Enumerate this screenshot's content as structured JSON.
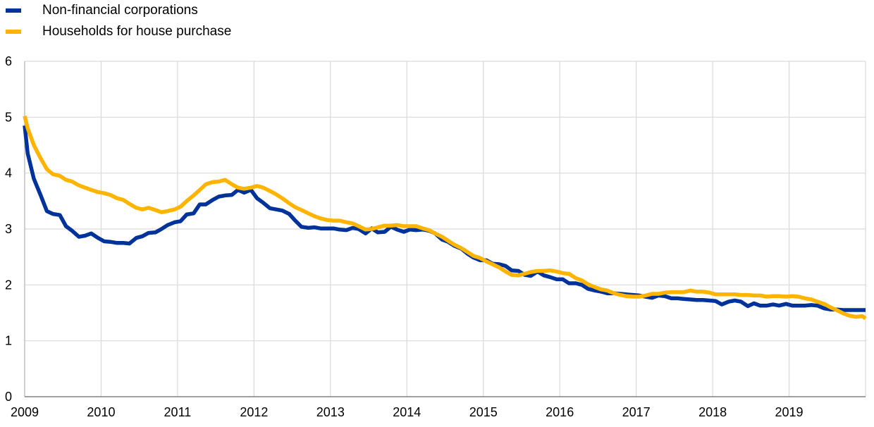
{
  "chart_data": {
    "type": "line",
    "title": "",
    "xlabel": "",
    "ylabel": "",
    "ylim": [
      0,
      6
    ],
    "xlim": [
      2009.0,
      2020.0
    ],
    "grid": true,
    "legend_position": "top-left",
    "y_ticks": [
      "0",
      "1",
      "2",
      "3",
      "4",
      "5",
      "6"
    ],
    "x_ticks": [
      "2009",
      "2010",
      "2011",
      "2012",
      "2013",
      "2014",
      "2015",
      "2016",
      "2017",
      "2018",
      "2019"
    ],
    "series": [
      {
        "name": "Non-financial corporations",
        "color": "#003399",
        "points": [
          [
            2009.0,
            4.85
          ],
          [
            2009.04,
            4.35
          ],
          [
            2009.12,
            3.9
          ],
          [
            2009.21,
            3.6
          ],
          [
            2009.29,
            3.32
          ],
          [
            2009.37,
            3.27
          ],
          [
            2009.46,
            3.25
          ],
          [
            2009.54,
            3.05
          ],
          [
            2009.62,
            2.97
          ],
          [
            2009.71,
            2.86
          ],
          [
            2009.79,
            2.88
          ],
          [
            2009.87,
            2.92
          ],
          [
            2009.96,
            2.84
          ],
          [
            2010.04,
            2.78
          ],
          [
            2010.12,
            2.77
          ],
          [
            2010.21,
            2.75
          ],
          [
            2010.29,
            2.75
          ],
          [
            2010.37,
            2.74
          ],
          [
            2010.46,
            2.84
          ],
          [
            2010.54,
            2.87
          ],
          [
            2010.62,
            2.93
          ],
          [
            2010.71,
            2.94
          ],
          [
            2010.79,
            3.0
          ],
          [
            2010.87,
            3.07
          ],
          [
            2010.96,
            3.12
          ],
          [
            2011.04,
            3.14
          ],
          [
            2011.12,
            3.26
          ],
          [
            2011.21,
            3.28
          ],
          [
            2011.29,
            3.44
          ],
          [
            2011.37,
            3.44
          ],
          [
            2011.46,
            3.52
          ],
          [
            2011.54,
            3.58
          ],
          [
            2011.62,
            3.6
          ],
          [
            2011.71,
            3.61
          ],
          [
            2011.79,
            3.7
          ],
          [
            2011.87,
            3.65
          ],
          [
            2011.96,
            3.7
          ],
          [
            2012.04,
            3.55
          ],
          [
            2012.12,
            3.47
          ],
          [
            2012.21,
            3.37
          ],
          [
            2012.29,
            3.35
          ],
          [
            2012.37,
            3.33
          ],
          [
            2012.46,
            3.27
          ],
          [
            2012.54,
            3.15
          ],
          [
            2012.62,
            3.04
          ],
          [
            2012.71,
            3.02
          ],
          [
            2012.79,
            3.03
          ],
          [
            2012.87,
            3.01
          ],
          [
            2012.96,
            3.01
          ],
          [
            2013.04,
            3.01
          ],
          [
            2013.12,
            2.99
          ],
          [
            2013.21,
            2.98
          ],
          [
            2013.29,
            3.02
          ],
          [
            2013.37,
            3.0
          ],
          [
            2013.46,
            2.92
          ],
          [
            2013.54,
            3.01
          ],
          [
            2013.62,
            2.94
          ],
          [
            2013.71,
            2.95
          ],
          [
            2013.79,
            3.04
          ],
          [
            2013.87,
            2.99
          ],
          [
            2013.96,
            2.95
          ],
          [
            2014.04,
            2.99
          ],
          [
            2014.12,
            2.98
          ],
          [
            2014.21,
            2.99
          ],
          [
            2014.29,
            2.97
          ],
          [
            2014.37,
            2.92
          ],
          [
            2014.46,
            2.81
          ],
          [
            2014.54,
            2.77
          ],
          [
            2014.62,
            2.7
          ],
          [
            2014.71,
            2.65
          ],
          [
            2014.79,
            2.56
          ],
          [
            2014.87,
            2.49
          ],
          [
            2014.96,
            2.44
          ],
          [
            2015.04,
            2.44
          ],
          [
            2015.12,
            2.38
          ],
          [
            2015.21,
            2.37
          ],
          [
            2015.29,
            2.34
          ],
          [
            2015.37,
            2.26
          ],
          [
            2015.46,
            2.25
          ],
          [
            2015.54,
            2.18
          ],
          [
            2015.62,
            2.16
          ],
          [
            2015.71,
            2.24
          ],
          [
            2015.79,
            2.17
          ],
          [
            2015.87,
            2.14
          ],
          [
            2015.96,
            2.1
          ],
          [
            2016.04,
            2.1
          ],
          [
            2016.12,
            2.03
          ],
          [
            2016.21,
            2.03
          ],
          [
            2016.29,
            2.0
          ],
          [
            2016.37,
            1.93
          ],
          [
            2016.46,
            1.9
          ],
          [
            2016.54,
            1.88
          ],
          [
            2016.62,
            1.85
          ],
          [
            2016.71,
            1.85
          ],
          [
            2016.79,
            1.84
          ],
          [
            2016.87,
            1.83
          ],
          [
            2016.96,
            1.82
          ],
          [
            2017.04,
            1.81
          ],
          [
            2017.12,
            1.79
          ],
          [
            2017.21,
            1.77
          ],
          [
            2017.29,
            1.81
          ],
          [
            2017.37,
            1.8
          ],
          [
            2017.46,
            1.76
          ],
          [
            2017.54,
            1.76
          ],
          [
            2017.62,
            1.75
          ],
          [
            2017.71,
            1.74
          ],
          [
            2017.79,
            1.73
          ],
          [
            2017.87,
            1.73
          ],
          [
            2017.96,
            1.72
          ],
          [
            2018.04,
            1.71
          ],
          [
            2018.12,
            1.65
          ],
          [
            2018.21,
            1.7
          ],
          [
            2018.29,
            1.72
          ],
          [
            2018.37,
            1.7
          ],
          [
            2018.46,
            1.62
          ],
          [
            2018.54,
            1.67
          ],
          [
            2018.62,
            1.63
          ],
          [
            2018.71,
            1.63
          ],
          [
            2018.79,
            1.65
          ],
          [
            2018.87,
            1.63
          ],
          [
            2018.96,
            1.66
          ],
          [
            2019.04,
            1.63
          ],
          [
            2019.12,
            1.63
          ],
          [
            2019.21,
            1.63
          ],
          [
            2019.29,
            1.64
          ],
          [
            2019.37,
            1.63
          ],
          [
            2019.46,
            1.58
          ],
          [
            2019.54,
            1.56
          ],
          [
            2019.62,
            1.56
          ],
          [
            2019.71,
            1.55
          ],
          [
            2019.79,
            1.55
          ],
          [
            2019.87,
            1.55
          ],
          [
            2019.96,
            1.55
          ],
          [
            2020.0,
            1.55
          ]
        ]
      },
      {
        "name": "Households for house purchase",
        "color": "#FFB400",
        "points": [
          [
            2009.0,
            5.02
          ],
          [
            2009.04,
            4.8
          ],
          [
            2009.12,
            4.5
          ],
          [
            2009.21,
            4.26
          ],
          [
            2009.29,
            4.07
          ],
          [
            2009.37,
            3.98
          ],
          [
            2009.46,
            3.95
          ],
          [
            2009.54,
            3.88
          ],
          [
            2009.62,
            3.85
          ],
          [
            2009.71,
            3.78
          ],
          [
            2009.79,
            3.74
          ],
          [
            2009.87,
            3.7
          ],
          [
            2009.96,
            3.66
          ],
          [
            2010.04,
            3.64
          ],
          [
            2010.12,
            3.61
          ],
          [
            2010.21,
            3.55
          ],
          [
            2010.29,
            3.52
          ],
          [
            2010.37,
            3.45
          ],
          [
            2010.46,
            3.38
          ],
          [
            2010.54,
            3.35
          ],
          [
            2010.62,
            3.38
          ],
          [
            2010.71,
            3.34
          ],
          [
            2010.79,
            3.3
          ],
          [
            2010.87,
            3.32
          ],
          [
            2010.96,
            3.35
          ],
          [
            2011.04,
            3.4
          ],
          [
            2011.12,
            3.5
          ],
          [
            2011.21,
            3.6
          ],
          [
            2011.29,
            3.7
          ],
          [
            2011.37,
            3.8
          ],
          [
            2011.46,
            3.84
          ],
          [
            2011.54,
            3.85
          ],
          [
            2011.62,
            3.88
          ],
          [
            2011.71,
            3.8
          ],
          [
            2011.79,
            3.74
          ],
          [
            2011.87,
            3.72
          ],
          [
            2011.96,
            3.74
          ],
          [
            2012.04,
            3.77
          ],
          [
            2012.12,
            3.74
          ],
          [
            2012.21,
            3.68
          ],
          [
            2012.29,
            3.62
          ],
          [
            2012.37,
            3.55
          ],
          [
            2012.46,
            3.46
          ],
          [
            2012.54,
            3.39
          ],
          [
            2012.62,
            3.34
          ],
          [
            2012.71,
            3.28
          ],
          [
            2012.79,
            3.23
          ],
          [
            2012.87,
            3.19
          ],
          [
            2012.96,
            3.16
          ],
          [
            2013.04,
            3.15
          ],
          [
            2013.12,
            3.15
          ],
          [
            2013.21,
            3.12
          ],
          [
            2013.29,
            3.1
          ],
          [
            2013.37,
            3.05
          ],
          [
            2013.46,
            2.99
          ],
          [
            2013.54,
            3.0
          ],
          [
            2013.62,
            3.03
          ],
          [
            2013.71,
            3.06
          ],
          [
            2013.79,
            3.06
          ],
          [
            2013.87,
            3.07
          ],
          [
            2013.96,
            3.05
          ],
          [
            2014.04,
            3.05
          ],
          [
            2014.12,
            3.05
          ],
          [
            2014.21,
            3.01
          ],
          [
            2014.29,
            2.98
          ],
          [
            2014.37,
            2.92
          ],
          [
            2014.46,
            2.86
          ],
          [
            2014.54,
            2.79
          ],
          [
            2014.62,
            2.72
          ],
          [
            2014.71,
            2.66
          ],
          [
            2014.79,
            2.59
          ],
          [
            2014.87,
            2.52
          ],
          [
            2014.96,
            2.48
          ],
          [
            2015.04,
            2.42
          ],
          [
            2015.12,
            2.37
          ],
          [
            2015.21,
            2.31
          ],
          [
            2015.29,
            2.24
          ],
          [
            2015.37,
            2.18
          ],
          [
            2015.46,
            2.17
          ],
          [
            2015.54,
            2.2
          ],
          [
            2015.62,
            2.23
          ],
          [
            2015.71,
            2.25
          ],
          [
            2015.79,
            2.25
          ],
          [
            2015.87,
            2.26
          ],
          [
            2015.96,
            2.24
          ],
          [
            2016.04,
            2.21
          ],
          [
            2016.12,
            2.2
          ],
          [
            2016.21,
            2.12
          ],
          [
            2016.29,
            2.08
          ],
          [
            2016.37,
            2.01
          ],
          [
            2016.46,
            1.96
          ],
          [
            2016.54,
            1.92
          ],
          [
            2016.62,
            1.9
          ],
          [
            2016.71,
            1.85
          ],
          [
            2016.79,
            1.82
          ],
          [
            2016.87,
            1.8
          ],
          [
            2016.96,
            1.79
          ],
          [
            2017.04,
            1.79
          ],
          [
            2017.12,
            1.81
          ],
          [
            2017.21,
            1.84
          ],
          [
            2017.29,
            1.84
          ],
          [
            2017.37,
            1.86
          ],
          [
            2017.46,
            1.87
          ],
          [
            2017.54,
            1.87
          ],
          [
            2017.62,
            1.87
          ],
          [
            2017.71,
            1.9
          ],
          [
            2017.79,
            1.88
          ],
          [
            2017.87,
            1.88
          ],
          [
            2017.96,
            1.86
          ],
          [
            2018.04,
            1.83
          ],
          [
            2018.12,
            1.83
          ],
          [
            2018.21,
            1.83
          ],
          [
            2018.29,
            1.83
          ],
          [
            2018.37,
            1.82
          ],
          [
            2018.46,
            1.82
          ],
          [
            2018.54,
            1.81
          ],
          [
            2018.62,
            1.81
          ],
          [
            2018.71,
            1.79
          ],
          [
            2018.79,
            1.8
          ],
          [
            2018.87,
            1.8
          ],
          [
            2018.96,
            1.79
          ],
          [
            2019.04,
            1.8
          ],
          [
            2019.12,
            1.79
          ],
          [
            2019.21,
            1.76
          ],
          [
            2019.29,
            1.74
          ],
          [
            2019.37,
            1.7
          ],
          [
            2019.46,
            1.66
          ],
          [
            2019.54,
            1.6
          ],
          [
            2019.62,
            1.55
          ],
          [
            2019.71,
            1.49
          ],
          [
            2019.79,
            1.45
          ],
          [
            2019.87,
            1.43
          ],
          [
            2019.96,
            1.44
          ],
          [
            2020.0,
            1.4
          ]
        ]
      }
    ]
  }
}
